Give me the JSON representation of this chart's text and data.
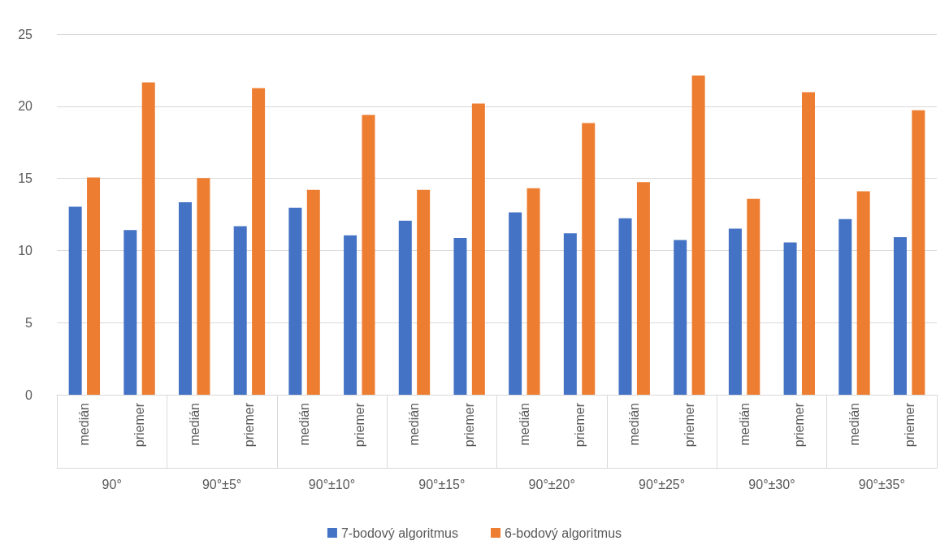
{
  "chart_data": {
    "type": "bar",
    "categories": [
      "medián",
      "priemer",
      "medián",
      "priemer",
      "medián",
      "priemer",
      "medián",
      "priemer",
      "medián",
      "priemer",
      "medián",
      "priemer",
      "medián",
      "priemer",
      "medián",
      "priemer"
    ],
    "annotations": [
      "90°",
      "90°±5°",
      "90°±10°",
      "90°±15°",
      "90°±20°",
      "90°±25°",
      "90°±30°",
      "90°±35°"
    ],
    "series": [
      {
        "name": "7-bodový algoritmus",
        "color": "#4472c4",
        "values": [
          13.03,
          11.41,
          13.34,
          11.69,
          12.96,
          11.05,
          12.07,
          10.87,
          12.64,
          11.19,
          12.23,
          10.72,
          11.51,
          10.56,
          12.17,
          10.93
        ]
      },
      {
        "name": "6-bodový algoritmus",
        "color": "#ed7d31",
        "values": [
          15.06,
          21.65,
          15.02,
          21.25,
          14.2,
          19.4,
          14.2,
          20.18,
          14.32,
          18.83,
          14.74,
          22.13,
          13.58,
          20.97,
          14.11,
          19.72
        ]
      }
    ],
    "ylim": [
      0,
      25
    ],
    "yticks": [
      0,
      5,
      10,
      15,
      20,
      25
    ],
    "grid": "y",
    "legend": "bottom"
  }
}
